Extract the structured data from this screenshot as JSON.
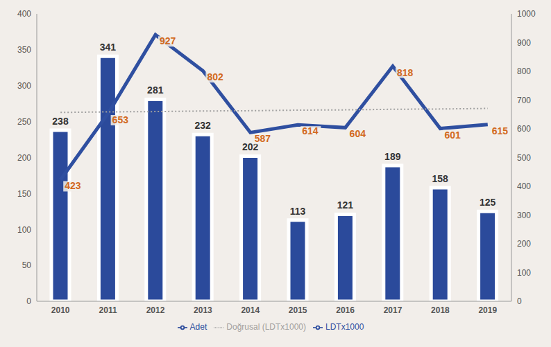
{
  "chart_data": {
    "type": "bar",
    "categories": [
      "2010",
      "2011",
      "2012",
      "2013",
      "2014",
      "2015",
      "2016",
      "2017",
      "2018",
      "2019"
    ],
    "series": [
      {
        "name": "Adet",
        "type": "bar",
        "color": "#2b4a9b",
        "data_labels": true,
        "values": [
          238,
          341,
          281,
          232,
          202,
          113,
          121,
          189,
          158,
          125
        ]
      },
      {
        "name": "LDTx1000",
        "type": "line",
        "axis": "y2",
        "color": "#2f4fa0",
        "data_labels": true,
        "values": [
          423,
          653,
          927,
          802,
          587,
          614,
          604,
          818,
          601,
          615
        ]
      },
      {
        "name": "Doğrusal (LDTx1000)",
        "type": "line",
        "axis": "y2",
        "color": "#a0a0a0",
        "line_style": "dotted",
        "data_labels": false,
        "values": [
          657,
          659,
          660,
          662,
          663,
          665,
          666,
          668,
          669,
          671
        ]
      }
    ],
    "ylim": [
      0,
      400
    ],
    "yticks": [
      0,
      50,
      100,
      150,
      200,
      250,
      300,
      350,
      400
    ],
    "y2lim": [
      0,
      1000
    ],
    "y2ticks": [
      0,
      100,
      200,
      300,
      400,
      500,
      600,
      700,
      800,
      900,
      1000
    ],
    "legend": "bottom",
    "grid": false
  }
}
